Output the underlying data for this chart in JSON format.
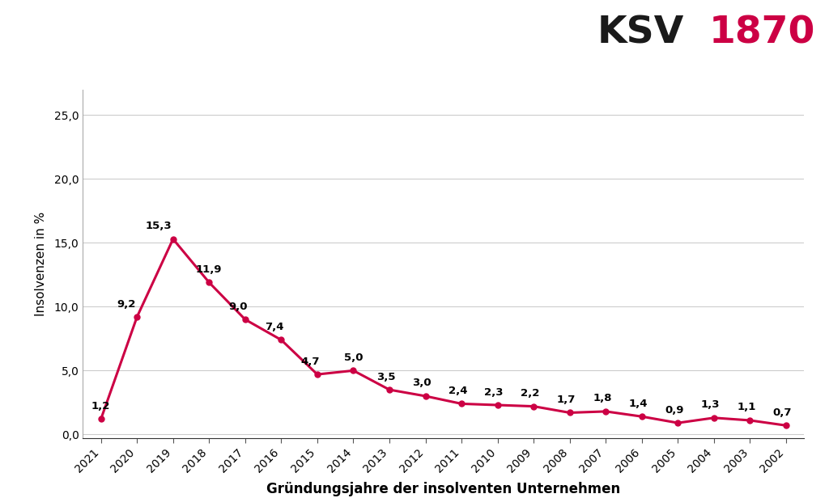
{
  "years": [
    2021,
    2020,
    2019,
    2018,
    2017,
    2016,
    2015,
    2014,
    2013,
    2012,
    2011,
    2010,
    2009,
    2008,
    2007,
    2006,
    2005,
    2004,
    2003,
    2002
  ],
  "values": [
    1.2,
    9.2,
    15.3,
    11.9,
    9.0,
    7.4,
    4.7,
    5.0,
    3.5,
    3.0,
    2.4,
    2.3,
    2.2,
    1.7,
    1.8,
    1.4,
    0.9,
    1.3,
    1.1,
    0.7
  ],
  "line_color": "#CC0044",
  "marker_color": "#CC0044",
  "background_color": "#ffffff",
  "xlabel": "Gründungsjahre der insolventen Unternehmen",
  "ylabel": "Insolvenzen in %",
  "yticks": [
    0.0,
    5.0,
    10.0,
    15.0,
    20.0,
    25.0
  ],
  "ytick_labels": [
    "0,0",
    "5,0",
    "10,0",
    "15,0",
    "20,0",
    "25,0"
  ],
  "ylim": [
    -0.3,
    27.0
  ],
  "logo_ksv": "KSV",
  "logo_1870": "1870",
  "logo_ksv_color": "#1a1a1a",
  "logo_1870_color": "#CC0044",
  "logo_fontsize": 34,
  "xlabel_fontsize": 12,
  "ylabel_fontsize": 11,
  "tick_fontsize": 10,
  "annotation_fontsize": 9.5,
  "line_width": 2.2,
  "marker_size": 5
}
